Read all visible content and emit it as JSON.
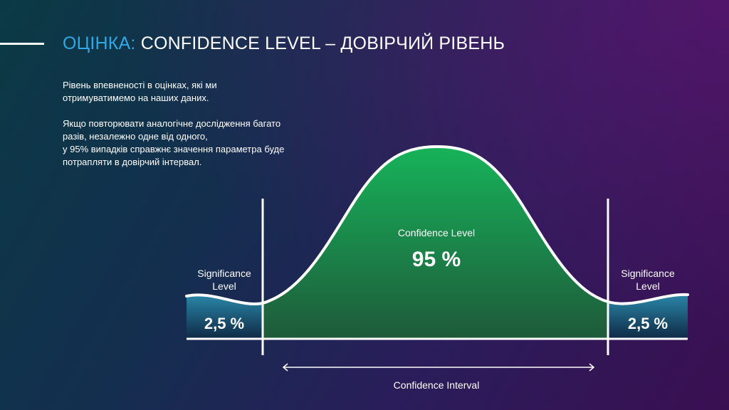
{
  "slide": {
    "title_accent": "ОЦІНКА:",
    "title_main": "CONFIDENCE LEVEL – ДОВІРЧИЙ РІВЕНЬ",
    "description": {
      "paragraph1": [
        "Рівень впевненості в оцінках, які ми",
        "отримуватимемо на наших даних."
      ],
      "paragraph2": [
        "Якщо повторювати аналогічне дослідження багато",
        "разів, незалежно одне від одного,",
        "у 95% випадків справжнє значення параметра буде",
        "потрапляти в довірчий інтервал."
      ]
    }
  },
  "diagram": {
    "left_tail": {
      "label_line1": "Significance",
      "label_line2": "Level",
      "value": "2,5 %"
    },
    "center": {
      "label": "Confidence Level",
      "value": "95 %"
    },
    "right_tail": {
      "label_line1": "Significance",
      "label_line2": "Level",
      "value": "2,5 %"
    },
    "interval_label": "Confidence Interval"
  },
  "colors": {
    "title_accent": "#2fa8e8",
    "center_fill_top": "#17b35a",
    "center_fill_bottom": "#1e5a3a",
    "tail_fill_top": "#2a86a8",
    "tail_fill_bottom": "#0f2a45"
  }
}
